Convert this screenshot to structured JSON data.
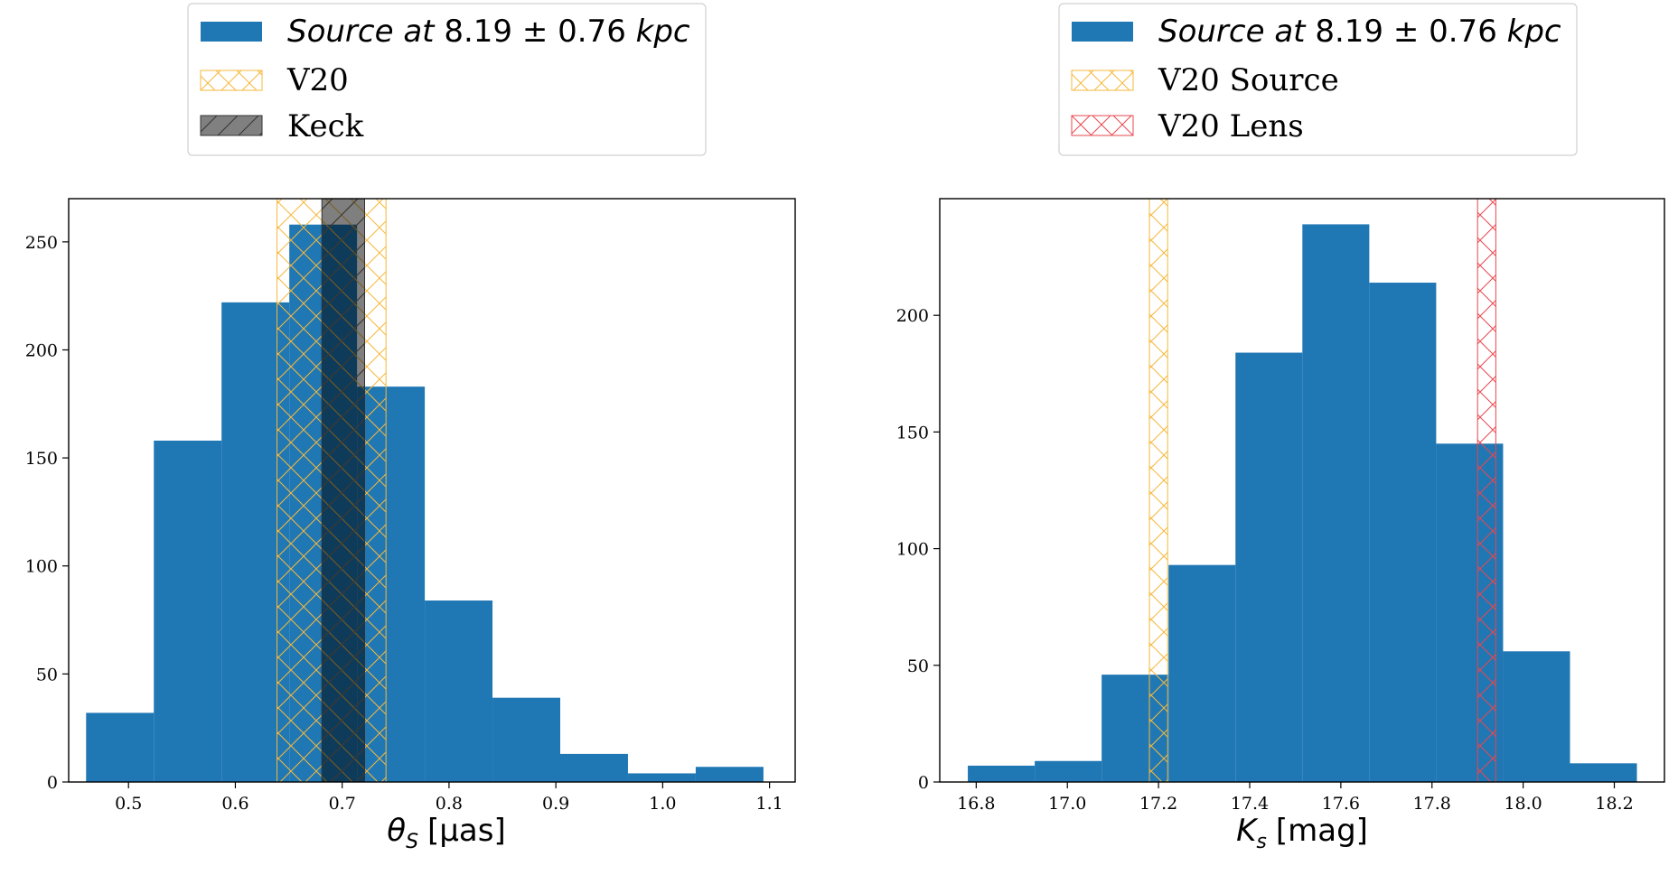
{
  "colors": {
    "hist": "#1f77b4",
    "v20": "#f5b83d",
    "keck": "#333333",
    "lens": "#e8474f",
    "axis": "#000000"
  },
  "chart_data": [
    {
      "type": "bar",
      "id": "left",
      "xlabel": "θ_S [μas]",
      "xlabel_main": "θ",
      "xlabel_sub": "S",
      "xlabel_unit": "[μas]",
      "xlim": [
        0.444,
        1.124
      ],
      "ylim": [
        0,
        270
      ],
      "xticks": [
        0.5,
        0.6,
        0.7,
        0.8,
        0.9,
        1.0,
        1.1
      ],
      "xtick_labels": [
        "0.5",
        "0.6",
        "0.7",
        "0.8",
        "0.9",
        "1.0",
        "1.1"
      ],
      "yticks": [
        0,
        50,
        100,
        150,
        200,
        250
      ],
      "ytick_labels": [
        "0",
        "50",
        "100",
        "150",
        "200",
        "250"
      ],
      "bins": [
        0.4603,
        0.5237,
        0.5871,
        0.6505,
        0.7139,
        0.7773,
        0.8407,
        0.9041,
        0.9675,
        1.0309,
        1.0943
      ],
      "counts": [
        32,
        158,
        222,
        258,
        183,
        84,
        39,
        13,
        4,
        7
      ],
      "bands": [
        {
          "name": "V20",
          "x0": 0.639,
          "x1": 0.741,
          "kind": "v20"
        },
        {
          "name": "Keck",
          "x0": 0.681,
          "x1": 0.721,
          "kind": "keck"
        }
      ],
      "legend": [
        {
          "kind": "hist",
          "prefix": "Source at ",
          "value": "8.19 ± 0.76",
          "suffix": " kpc"
        },
        {
          "kind": "v20",
          "label": "V20"
        },
        {
          "kind": "keck",
          "label": "Keck"
        }
      ]
    },
    {
      "type": "bar",
      "id": "right",
      "xlabel": "K_s [mag]",
      "xlabel_main": "K",
      "xlabel_sub": "s",
      "xlabel_unit": "[mag]",
      "xlim": [
        16.72,
        18.31
      ],
      "ylim": [
        0,
        250
      ],
      "xticks": [
        16.8,
        17.0,
        17.2,
        17.4,
        17.6,
        17.8,
        18.0,
        18.2
      ],
      "xtick_labels": [
        "16.8",
        "17.0",
        "17.2",
        "17.4",
        "17.6",
        "17.8",
        "18.0",
        "18.2"
      ],
      "yticks": [
        0,
        50,
        100,
        150,
        200
      ],
      "ytick_labels": [
        "0",
        "50",
        "100",
        "150",
        "200"
      ],
      "bins": [
        16.7816,
        16.9284,
        17.0752,
        17.222,
        17.3688,
        17.5156,
        17.6624,
        17.8092,
        17.956,
        18.1028,
        18.2496
      ],
      "counts": [
        7,
        9,
        46,
        93,
        184,
        239,
        214,
        145,
        56,
        8
      ],
      "bands": [
        {
          "name": "V20 Source",
          "x0": 17.18,
          "x1": 17.22,
          "kind": "v20"
        },
        {
          "name": "V20 Lens",
          "x0": 17.9,
          "x1": 17.94,
          "kind": "lens"
        }
      ],
      "legend": [
        {
          "kind": "hist",
          "prefix": "Source at ",
          "value": "8.19 ± 0.76",
          "suffix": " kpc"
        },
        {
          "kind": "v20",
          "label": "V20 Source"
        },
        {
          "kind": "lens",
          "label": "V20 Lens"
        }
      ]
    }
  ]
}
